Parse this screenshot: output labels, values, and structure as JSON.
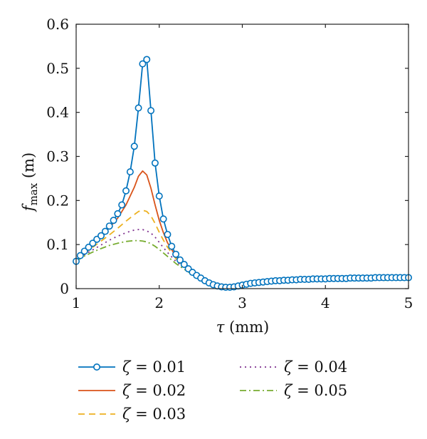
{
  "chart_data": {
    "type": "line",
    "xlabel": "τ (mm)",
    "xlabel_parts": {
      "symbol": "τ",
      "unit": " (mm)"
    },
    "ylabel": "f_max (m)",
    "ylabel_parts": {
      "symbol": "f",
      "subscript": "max",
      "unit": " (m)"
    },
    "xlim": [
      1,
      5
    ],
    "ylim": [
      0,
      0.6
    ],
    "xticks": [
      1,
      2,
      3,
      4,
      5
    ],
    "yticks": [
      0,
      0.1,
      0.2,
      0.3,
      0.4,
      0.5,
      0.6
    ],
    "xtick_labels": [
      "1",
      "2",
      "3",
      "4",
      "5"
    ],
    "ytick_labels": [
      "0",
      "0.1",
      "0.2",
      "0.3",
      "0.4",
      "0.5",
      "0.6"
    ],
    "grid": false,
    "legend_position": "bottom",
    "series": [
      {
        "name": "ζ = 0.01",
        "color": "#0072BD",
        "style": "solid-circle-markers",
        "x": [
          1.0,
          1.05,
          1.1,
          1.15,
          1.2,
          1.25,
          1.3,
          1.35,
          1.4,
          1.45,
          1.5,
          1.55,
          1.6,
          1.65,
          1.7,
          1.75,
          1.8,
          1.85,
          1.9,
          1.95,
          2.0,
          2.05,
          2.1,
          2.15,
          2.2,
          2.25,
          2.3,
          2.35,
          2.4,
          2.45,
          2.5,
          2.55,
          2.6,
          2.65,
          2.7,
          2.75,
          2.8,
          2.85,
          2.9,
          2.95,
          3.0,
          3.05,
          3.1,
          3.15,
          3.2,
          3.25,
          3.3,
          3.35,
          3.4,
          3.45,
          3.5,
          3.55,
          3.6,
          3.65,
          3.7,
          3.75,
          3.8,
          3.85,
          3.9,
          3.95,
          4.0,
          4.05,
          4.1,
          4.15,
          4.2,
          4.25,
          4.3,
          4.35,
          4.4,
          4.45,
          4.5,
          4.55,
          4.6,
          4.65,
          4.7,
          4.75,
          4.8,
          4.85,
          4.9,
          4.95,
          5.0
        ],
        "y": [
          0.062,
          0.075,
          0.085,
          0.094,
          0.103,
          0.112,
          0.12,
          0.13,
          0.142,
          0.155,
          0.17,
          0.19,
          0.222,
          0.265,
          0.323,
          0.41,
          0.51,
          0.52,
          0.404,
          0.285,
          0.21,
          0.158,
          0.123,
          0.096,
          0.078,
          0.065,
          0.055,
          0.045,
          0.037,
          0.03,
          0.024,
          0.018,
          0.013,
          0.009,
          0.006,
          0.004,
          0.003,
          0.003,
          0.004,
          0.006,
          0.008,
          0.01,
          0.012,
          0.013,
          0.014,
          0.015,
          0.016,
          0.017,
          0.018,
          0.018,
          0.019,
          0.019,
          0.02,
          0.02,
          0.021,
          0.021,
          0.021,
          0.022,
          0.022,
          0.022,
          0.022,
          0.023,
          0.023,
          0.023,
          0.023,
          0.023,
          0.024,
          0.024,
          0.024,
          0.024,
          0.024,
          0.024,
          0.025,
          0.025,
          0.025,
          0.025,
          0.025,
          0.025,
          0.025,
          0.025,
          0.025
        ]
      },
      {
        "name": "ζ = 0.02",
        "color": "#D95319",
        "style": "solid",
        "x": [
          1.0,
          1.1,
          1.2,
          1.3,
          1.4,
          1.5,
          1.6,
          1.7,
          1.75,
          1.8,
          1.85,
          1.9,
          1.95,
          2.0,
          2.05,
          2.1,
          2.2,
          2.3,
          2.4,
          2.5,
          2.6,
          2.7,
          2.8,
          2.9,
          3.0,
          3.2,
          3.4,
          3.6,
          3.8,
          4.0,
          4.2,
          4.4,
          4.6,
          4.8,
          5.0
        ],
        "y": [
          0.062,
          0.083,
          0.1,
          0.118,
          0.138,
          0.16,
          0.19,
          0.23,
          0.255,
          0.267,
          0.258,
          0.228,
          0.19,
          0.155,
          0.127,
          0.104,
          0.073,
          0.053,
          0.037,
          0.024,
          0.013,
          0.006,
          0.003,
          0.003,
          0.007,
          0.012,
          0.015,
          0.017,
          0.018,
          0.019,
          0.02,
          0.02,
          0.021,
          0.021,
          0.021
        ]
      },
      {
        "name": "ζ = 0.03",
        "color": "#EDB120",
        "style": "dashed",
        "x": [
          1.0,
          1.1,
          1.2,
          1.3,
          1.4,
          1.5,
          1.6,
          1.7,
          1.75,
          1.8,
          1.85,
          1.9,
          1.95,
          2.0,
          2.05,
          2.1,
          2.2,
          2.3,
          2.4,
          2.5,
          2.6,
          2.7,
          2.8,
          2.9,
          3.0,
          3.2,
          3.4,
          3.6,
          3.8,
          4.0,
          4.2,
          4.4,
          4.6,
          4.8,
          5.0
        ],
        "y": [
          0.062,
          0.08,
          0.094,
          0.108,
          0.122,
          0.137,
          0.153,
          0.168,
          0.175,
          0.178,
          0.175,
          0.165,
          0.148,
          0.128,
          0.11,
          0.094,
          0.068,
          0.05,
          0.035,
          0.023,
          0.013,
          0.006,
          0.003,
          0.003,
          0.006,
          0.011,
          0.014,
          0.016,
          0.017,
          0.018,
          0.019,
          0.019,
          0.02,
          0.02,
          0.02
        ]
      },
      {
        "name": "ζ = 0.04",
        "color": "#7E2F8E",
        "style": "dotted",
        "x": [
          1.0,
          1.1,
          1.2,
          1.3,
          1.4,
          1.5,
          1.6,
          1.7,
          1.75,
          1.8,
          1.85,
          1.9,
          1.95,
          2.0,
          2.05,
          2.1,
          2.2,
          2.3,
          2.4,
          2.5,
          2.6,
          2.7,
          2.8,
          2.9,
          3.0,
          3.2,
          3.4,
          3.6,
          3.8,
          4.0,
          4.2,
          4.4,
          4.6,
          4.8,
          5.0
        ],
        "y": [
          0.062,
          0.077,
          0.088,
          0.099,
          0.11,
          0.119,
          0.127,
          0.133,
          0.134,
          0.134,
          0.131,
          0.126,
          0.117,
          0.105,
          0.093,
          0.082,
          0.062,
          0.047,
          0.034,
          0.023,
          0.013,
          0.006,
          0.003,
          0.003,
          0.006,
          0.011,
          0.014,
          0.016,
          0.017,
          0.018,
          0.018,
          0.019,
          0.019,
          0.02,
          0.02
        ]
      },
      {
        "name": "ζ = 0.05",
        "color": "#77AC30",
        "style": "dashdot",
        "x": [
          1.0,
          1.1,
          1.2,
          1.3,
          1.4,
          1.5,
          1.6,
          1.7,
          1.75,
          1.8,
          1.85,
          1.9,
          1.95,
          2.0,
          2.05,
          2.1,
          2.2,
          2.3,
          2.4,
          2.5,
          2.6,
          2.7,
          2.8,
          2.9,
          3.0,
          3.2,
          3.4,
          3.6,
          3.8,
          4.0,
          4.2,
          4.4,
          4.6,
          4.8,
          5.0
        ],
        "y": [
          0.062,
          0.074,
          0.083,
          0.091,
          0.098,
          0.103,
          0.107,
          0.109,
          0.109,
          0.108,
          0.106,
          0.102,
          0.096,
          0.089,
          0.081,
          0.073,
          0.057,
          0.044,
          0.032,
          0.022,
          0.013,
          0.006,
          0.003,
          0.003,
          0.006,
          0.011,
          0.014,
          0.016,
          0.017,
          0.018,
          0.018,
          0.019,
          0.019,
          0.019,
          0.02
        ]
      }
    ]
  }
}
